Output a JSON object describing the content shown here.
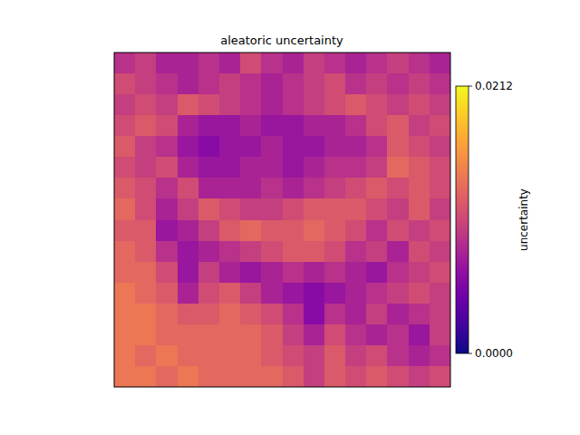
{
  "chart_data": {
    "type": "heatmap",
    "title": "aleatoric uncertainty",
    "tick_labels": false,
    "colorbar_label": "uncertainty",
    "color_range": [
      0,
      0.0212
    ],
    "color_ticks": [
      {
        "value": 0,
        "label": "0.0000"
      },
      0.0212
    ],
    "cells": [
      [
        0.009,
        0.01,
        0.008,
        0.008,
        0.009,
        0.008,
        0.011,
        0.009,
        0.008,
        0.01,
        0.009,
        0.008,
        0.009,
        0.01,
        0.009,
        0.008
      ],
      [
        0.011,
        0.01,
        0.009,
        0.008,
        0.009,
        0.01,
        0.009,
        0.008,
        0.009,
        0.01,
        0.011,
        0.009,
        0.01,
        0.009,
        0.01,
        0.009
      ],
      [
        0.01,
        0.011,
        0.01,
        0.012,
        0.011,
        0.01,
        0.009,
        0.008,
        0.009,
        0.01,
        0.011,
        0.012,
        0.011,
        0.01,
        0.011,
        0.01
      ],
      [
        0.011,
        0.012,
        0.011,
        0.008,
        0.007,
        0.007,
        0.008,
        0.007,
        0.007,
        0.008,
        0.008,
        0.009,
        0.011,
        0.012,
        0.01,
        0.011
      ],
      [
        0.012,
        0.01,
        0.009,
        0.007,
        0.006,
        0.007,
        0.007,
        0.008,
        0.007,
        0.007,
        0.008,
        0.008,
        0.009,
        0.012,
        0.011,
        0.01
      ],
      [
        0.011,
        0.01,
        0.011,
        0.008,
        0.007,
        0.007,
        0.008,
        0.008,
        0.007,
        0.008,
        0.009,
        0.009,
        0.01,
        0.013,
        0.012,
        0.011
      ],
      [
        0.012,
        0.011,
        0.009,
        0.011,
        0.008,
        0.008,
        0.008,
        0.009,
        0.008,
        0.009,
        0.01,
        0.011,
        0.012,
        0.011,
        0.012,
        0.011
      ],
      [
        0.013,
        0.011,
        0.008,
        0.01,
        0.012,
        0.011,
        0.01,
        0.01,
        0.011,
        0.012,
        0.012,
        0.012,
        0.011,
        0.01,
        0.012,
        0.01
      ],
      [
        0.012,
        0.012,
        0.007,
        0.008,
        0.01,
        0.012,
        0.013,
        0.012,
        0.012,
        0.013,
        0.012,
        0.011,
        0.009,
        0.011,
        0.01,
        0.011
      ],
      [
        0.013,
        0.012,
        0.009,
        0.007,
        0.008,
        0.009,
        0.01,
        0.011,
        0.012,
        0.012,
        0.011,
        0.009,
        0.01,
        0.008,
        0.011,
        0.01
      ],
      [
        0.013,
        0.013,
        0.011,
        0.007,
        0.01,
        0.008,
        0.007,
        0.008,
        0.009,
        0.008,
        0.009,
        0.008,
        0.007,
        0.009,
        0.01,
        0.011
      ],
      [
        0.014,
        0.013,
        0.012,
        0.008,
        0.011,
        0.012,
        0.01,
        0.008,
        0.007,
        0.006,
        0.007,
        0.008,
        0.009,
        0.01,
        0.011,
        0.01
      ],
      [
        0.014,
        0.014,
        0.013,
        0.012,
        0.012,
        0.013,
        0.012,
        0.011,
        0.009,
        0.006,
        0.009,
        0.008,
        0.01,
        0.008,
        0.009,
        0.01
      ],
      [
        0.014,
        0.014,
        0.013,
        0.013,
        0.013,
        0.013,
        0.013,
        0.012,
        0.01,
        0.008,
        0.011,
        0.009,
        0.008,
        0.009,
        0.007,
        0.01
      ],
      [
        0.014,
        0.013,
        0.014,
        0.013,
        0.013,
        0.013,
        0.013,
        0.012,
        0.011,
        0.01,
        0.012,
        0.01,
        0.011,
        0.009,
        0.008,
        0.009
      ],
      [
        0.014,
        0.014,
        0.013,
        0.014,
        0.013,
        0.013,
        0.013,
        0.013,
        0.012,
        0.01,
        0.012,
        0.011,
        0.012,
        0.011,
        0.01,
        0.011
      ]
    ]
  }
}
